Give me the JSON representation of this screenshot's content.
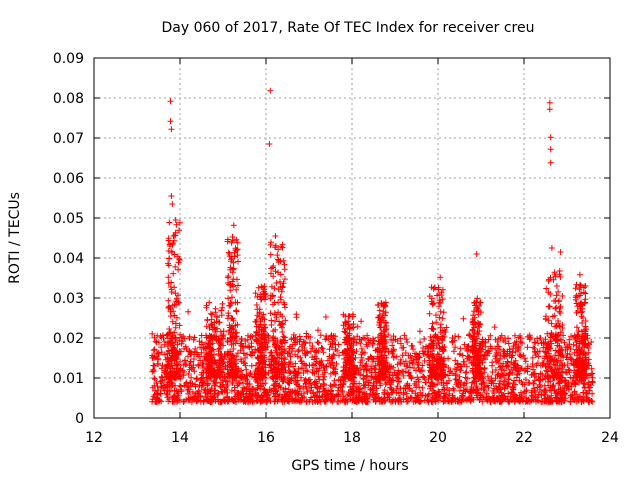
{
  "chart_data": {
    "type": "scatter",
    "title": "Day 060 of 2017, Rate Of TEC Index for receiver creu",
    "xlabel": "GPS time / hours",
    "ylabel": "ROTI / TECUs",
    "xlim": [
      12,
      24
    ],
    "ylim": [
      0,
      0.09
    ],
    "x_ticks": [
      12,
      14,
      16,
      18,
      20,
      22,
      24
    ],
    "x_tick_labels": [
      "12",
      "14",
      "16",
      "18",
      "20",
      "22",
      "24"
    ],
    "y_ticks": [
      0,
      0.01,
      0.02,
      0.03,
      0.04,
      0.05,
      0.06,
      0.07,
      0.08,
      0.09
    ],
    "y_tick_labels": [
      "0",
      "0.01",
      "0.02",
      "0.03",
      "0.04",
      "0.05",
      "0.06",
      "0.07",
      "0.08",
      "0.09"
    ],
    "grid": true,
    "marker": "+",
    "color": "#ff0000",
    "data_window": [
      13.35,
      23.6
    ],
    "notable_points": [
      {
        "x": 13.78,
        "y": 0.0792
      },
      {
        "x": 13.78,
        "y": 0.0742
      },
      {
        "x": 13.8,
        "y": 0.0722
      },
      {
        "x": 13.8,
        "y": 0.0555
      },
      {
        "x": 13.82,
        "y": 0.0535
      },
      {
        "x": 13.9,
        "y": 0.0495
      },
      {
        "x": 13.85,
        "y": 0.0455
      },
      {
        "x": 15.25,
        "y": 0.0482
      },
      {
        "x": 15.2,
        "y": 0.0438
      },
      {
        "x": 16.1,
        "y": 0.0818
      },
      {
        "x": 16.08,
        "y": 0.0685
      },
      {
        "x": 16.22,
        "y": 0.0455
      },
      {
        "x": 20.05,
        "y": 0.0352
      },
      {
        "x": 20.9,
        "y": 0.041
      },
      {
        "x": 22.6,
        "y": 0.0788
      },
      {
        "x": 22.6,
        "y": 0.0772
      },
      {
        "x": 22.62,
        "y": 0.0702
      },
      {
        "x": 22.62,
        "y": 0.0672
      },
      {
        "x": 22.62,
        "y": 0.0638
      },
      {
        "x": 22.65,
        "y": 0.0425
      },
      {
        "x": 22.85,
        "y": 0.0415
      },
      {
        "x": 23.3,
        "y": 0.0358
      }
    ],
    "bursts": [
      {
        "x_start": 13.7,
        "x_end": 14.0,
        "peak": 0.05
      },
      {
        "x_start": 14.6,
        "x_end": 15.0,
        "peak": 0.029
      },
      {
        "x_start": 15.1,
        "x_end": 15.35,
        "peak": 0.046
      },
      {
        "x_start": 15.75,
        "x_end": 16.0,
        "peak": 0.033
      },
      {
        "x_start": 16.1,
        "x_end": 16.45,
        "peak": 0.044
      },
      {
        "x_start": 17.8,
        "x_end": 18.05,
        "peak": 0.026
      },
      {
        "x_start": 18.6,
        "x_end": 18.8,
        "peak": 0.029
      },
      {
        "x_start": 19.8,
        "x_end": 20.15,
        "peak": 0.033
      },
      {
        "x_start": 20.8,
        "x_end": 21.0,
        "peak": 0.03
      },
      {
        "x_start": 22.5,
        "x_end": 22.9,
        "peak": 0.037
      },
      {
        "x_start": 23.2,
        "x_end": 23.45,
        "peak": 0.034
      }
    ],
    "baseline_range": [
      0.004,
      0.016
    ]
  }
}
